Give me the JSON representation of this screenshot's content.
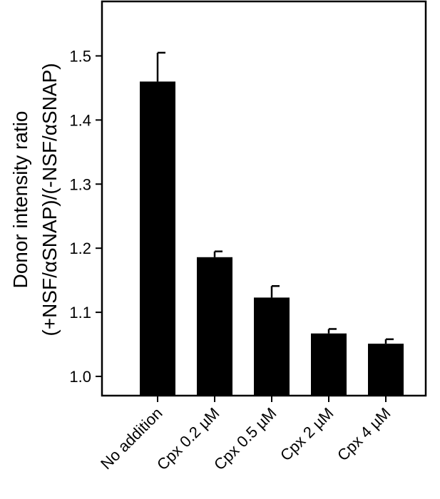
{
  "chart_data": {
    "type": "bar",
    "categories": [
      "No addition",
      "Cpx 0.2 µM",
      "Cpx 0.5 µM",
      "Cpx 2 µM",
      "Cpx 4 µM"
    ],
    "values": [
      1.46,
      1.186,
      1.123,
      1.067,
      1.051
    ],
    "errors": [
      0.045,
      0.009,
      0.018,
      0.007,
      0.007
    ],
    "ylabel_line1": "Donor intensity ratio",
    "ylabel_line2": "(+NSF/αSNAP)/(-NSF/αSNAP)",
    "ylim": [
      0.97,
      1.585
    ],
    "yticks": [
      "1.0",
      "1.1",
      "1.2",
      "1.3",
      "1.4",
      "1.5"
    ],
    "bar_color": "#000000",
    "grid": false
  }
}
